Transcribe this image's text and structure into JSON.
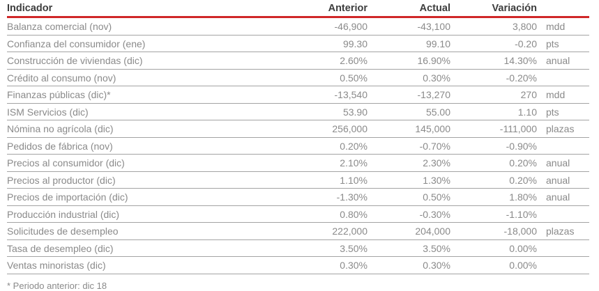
{
  "chart_data": {
    "type": "table",
    "columns": [
      "Indicador",
      "Anterior",
      "Actual",
      "Variación",
      ""
    ],
    "rows": [
      [
        "Balanza comercial (nov)",
        "-46,900",
        "-43,100",
        "3,800",
        "mdd"
      ],
      [
        "Confianza del consumidor (ene)",
        "99.30",
        "99.10",
        "-0.20",
        "pts"
      ],
      [
        "Construcción de viviendas (dic)",
        "2.60%",
        "16.90%",
        "14.30%",
        "anual"
      ],
      [
        "Crédito al consumo (nov)",
        "0.50%",
        "0.30%",
        "-0.20%",
        ""
      ],
      [
        "Finanzas públicas (dic)*",
        "-13,540",
        "-13,270",
        "270",
        "mdd"
      ],
      [
        "ISM Servicios (dic)",
        "53.90",
        "55.00",
        "1.10",
        "pts"
      ],
      [
        "Nómina no agrícola (dic)",
        "256,000",
        "145,000",
        "-111,000",
        "plazas"
      ],
      [
        "Pedidos de fábrica (nov)",
        "0.20%",
        "-0.70%",
        "-0.90%",
        ""
      ],
      [
        "Precios al consumidor (dic)",
        "2.10%",
        "2.30%",
        "0.20%",
        "anual"
      ],
      [
        "Precios al productor (dic)",
        "1.10%",
        "1.30%",
        "0.20%",
        "anual"
      ],
      [
        "Precios de importación (dic)",
        "-1.30%",
        "0.50%",
        "1.80%",
        "anual"
      ],
      [
        "Producción industrial (dic)",
        "0.80%",
        "-0.30%",
        "-1.10%",
        ""
      ],
      [
        "Solicitudes de desempleo",
        "222,000",
        "204,000",
        "-18,000",
        "plazas"
      ],
      [
        "Tasa de desempleo (dic)",
        "3.50%",
        "3.50%",
        "0.00%",
        ""
      ],
      [
        "Ventas minoristas (dic)",
        "0.30%",
        "0.30%",
        "0.00%",
        ""
      ]
    ],
    "footnote": "* Periodo anterior: dic 18",
    "layout": {
      "header_rule": "red",
      "value_alignment": "right",
      "unit_alignment": "left"
    }
  },
  "colors": {
    "header_text": "#3d3d3d",
    "body_text": "#8a8a8a",
    "accent_red": "#d02728",
    "row_divider": "#a3a3a3",
    "page_bg": "#ffffff"
  }
}
